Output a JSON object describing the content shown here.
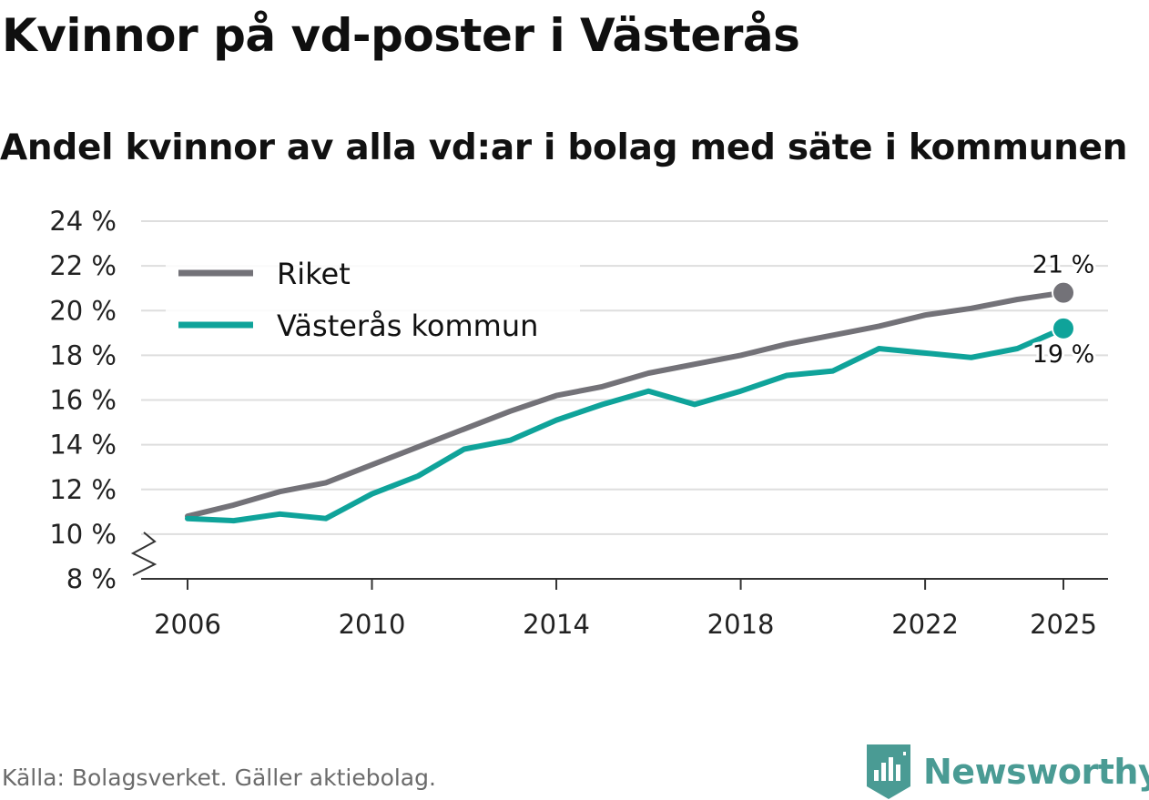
{
  "title": "Kvinnor på vd-poster i Västerås",
  "subtitle": "Andel kvinnor av alla vd:ar i bolag med säte i kommunen",
  "source": "Källa: Bolagsverket. Gäller aktiebolag.",
  "brand": {
    "name": "Newsworthy",
    "color": "#4a9b94"
  },
  "chart_data": {
    "type": "line",
    "title": "Andel kvinnor av alla vd:ar i bolag med säte i kommunen",
    "xlabel": "",
    "ylabel": "",
    "ylim": [
      8,
      24
    ],
    "y_ticks": [
      8,
      10,
      12,
      14,
      16,
      18,
      20,
      22,
      24
    ],
    "y_tick_labels": [
      "8 %",
      "10 %",
      "12 %",
      "14 %",
      "16 %",
      "18 %",
      "20 %",
      "22 %",
      "24 %"
    ],
    "y_axis_break": true,
    "x_ticks": [
      2006,
      2010,
      2014,
      2018,
      2022,
      2025
    ],
    "x_tick_labels": [
      "2006",
      "2010",
      "2014",
      "2018",
      "2022",
      "2025"
    ],
    "grid": true,
    "legend_position": "top-left",
    "x": [
      2006,
      2007,
      2008,
      2009,
      2010,
      2011,
      2012,
      2013,
      2014,
      2015,
      2016,
      2017,
      2018,
      2019,
      2020,
      2021,
      2022,
      2023,
      2024,
      2025
    ],
    "series": [
      {
        "name": "Riket",
        "color": "#737278",
        "values": [
          10.8,
          11.3,
          11.9,
          12.3,
          13.1,
          13.9,
          14.7,
          15.5,
          16.2,
          16.6,
          17.2,
          17.6,
          18.0,
          18.5,
          18.9,
          19.3,
          19.8,
          20.1,
          20.5,
          20.8
        ],
        "end_label": "21 %"
      },
      {
        "name": "Västerås kommun",
        "color": "#0fa39a",
        "values": [
          10.7,
          10.6,
          10.9,
          10.7,
          11.8,
          12.6,
          13.8,
          14.2,
          15.1,
          15.8,
          16.4,
          15.8,
          16.4,
          17.1,
          17.3,
          18.3,
          18.1,
          17.9,
          18.3,
          19.2
        ],
        "end_label": "19 %"
      }
    ]
  }
}
